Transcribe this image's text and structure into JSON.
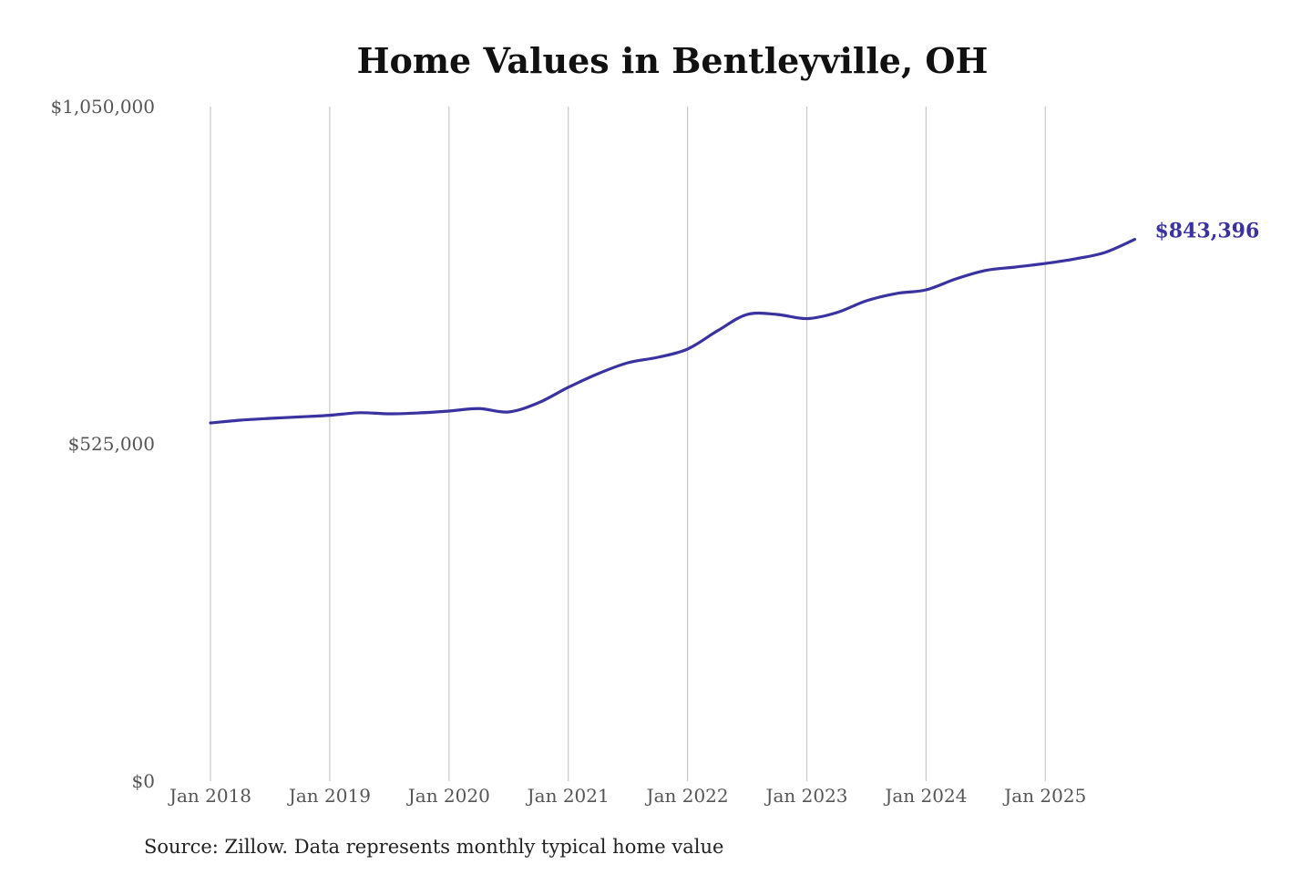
{
  "chart_data": {
    "type": "line",
    "title": "Home Values in Bentleyville, OH",
    "xlabel": "",
    "ylabel": "",
    "ylim": [
      0,
      1050000
    ],
    "y_ticks": [
      {
        "value": 0,
        "label": "$0"
      },
      {
        "value": 525000,
        "label": "$525,000"
      },
      {
        "value": 1050000,
        "label": "$1,050,000"
      }
    ],
    "x_ticks": [
      "Jan 2018",
      "Jan 2019",
      "Jan 2020",
      "Jan 2021",
      "Jan 2022",
      "Jan 2023",
      "Jan 2024",
      "Jan 2025"
    ],
    "grid": "vertical lines at year ticks",
    "series": [
      {
        "color": "#3a32a0",
        "x": [
          "2018-01",
          "2018-04",
          "2018-07",
          "2018-10",
          "2019-01",
          "2019-04",
          "2019-07",
          "2019-10",
          "2020-01",
          "2020-04",
          "2020-07",
          "2020-10",
          "2021-01",
          "2021-04",
          "2021-07",
          "2021-10",
          "2022-01",
          "2022-04",
          "2022-07",
          "2022-10",
          "2023-01",
          "2023-04",
          "2023-07",
          "2023-10",
          "2024-01",
          "2024-04",
          "2024-07",
          "2024-10",
          "2025-01",
          "2025-04",
          "2025-07",
          "2025-10"
        ],
        "values": [
          557600,
          561900,
          564700,
          567000,
          569500,
          573500,
          571800,
          573200,
          576100,
          580000,
          574700,
          589000,
          613000,
          634300,
          651300,
          659800,
          672600,
          700900,
          726500,
          726500,
          720000,
          729300,
          747800,
          759100,
          764800,
          781800,
          795000,
          800300,
          805900,
          813000,
          823000,
          843396
        ]
      }
    ],
    "end_label": "$843,396",
    "source": "Source: Zillow. Data represents monthly typical home value"
  }
}
